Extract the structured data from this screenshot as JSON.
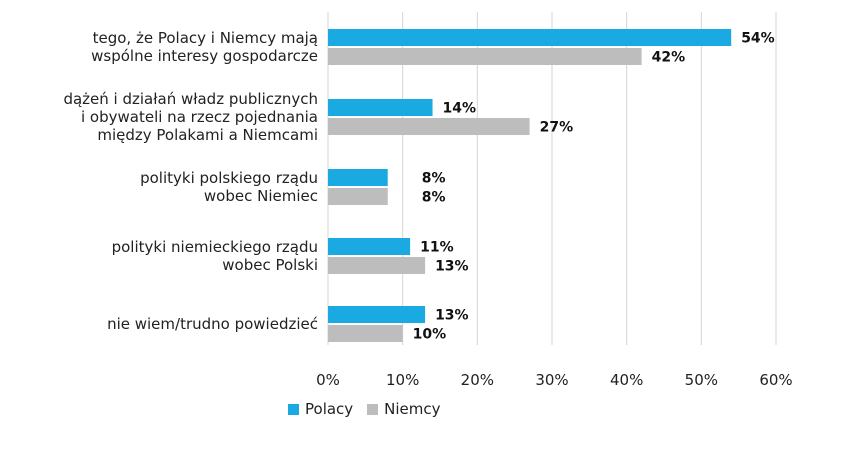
{
  "chart_data": {
    "type": "bar",
    "orientation": "horizontal",
    "categories": [
      [
        "tego, że Polacy i Niemcy mają",
        "wspólne interesy gospodarcze"
      ],
      [
        "dążeń i działań władz publicznych",
        "i obywateli na rzecz pojednania",
        "między Polakami a Niemcami"
      ],
      [
        "polityki polskiego rządu",
        "wobec Niemiec"
      ],
      [
        "polityki niemieckiego rządu",
        "wobec Polski"
      ],
      [
        "nie wiem/trudno powiedzieć"
      ]
    ],
    "series": [
      {
        "name": "Polacy",
        "color": "#1ba9e1",
        "values": [
          54,
          14,
          8,
          11,
          13
        ]
      },
      {
        "name": "Niemcy",
        "color": "#bdbdbd",
        "values": [
          42,
          27,
          8,
          13,
          10
        ]
      }
    ],
    "x_ticks": [
      "0%",
      "10%",
      "20%",
      "30%",
      "40%",
      "50%",
      "60%"
    ],
    "xlim": [
      0,
      60
    ],
    "value_suffix": "%",
    "grid": true,
    "legend_position": "bottom-left"
  }
}
